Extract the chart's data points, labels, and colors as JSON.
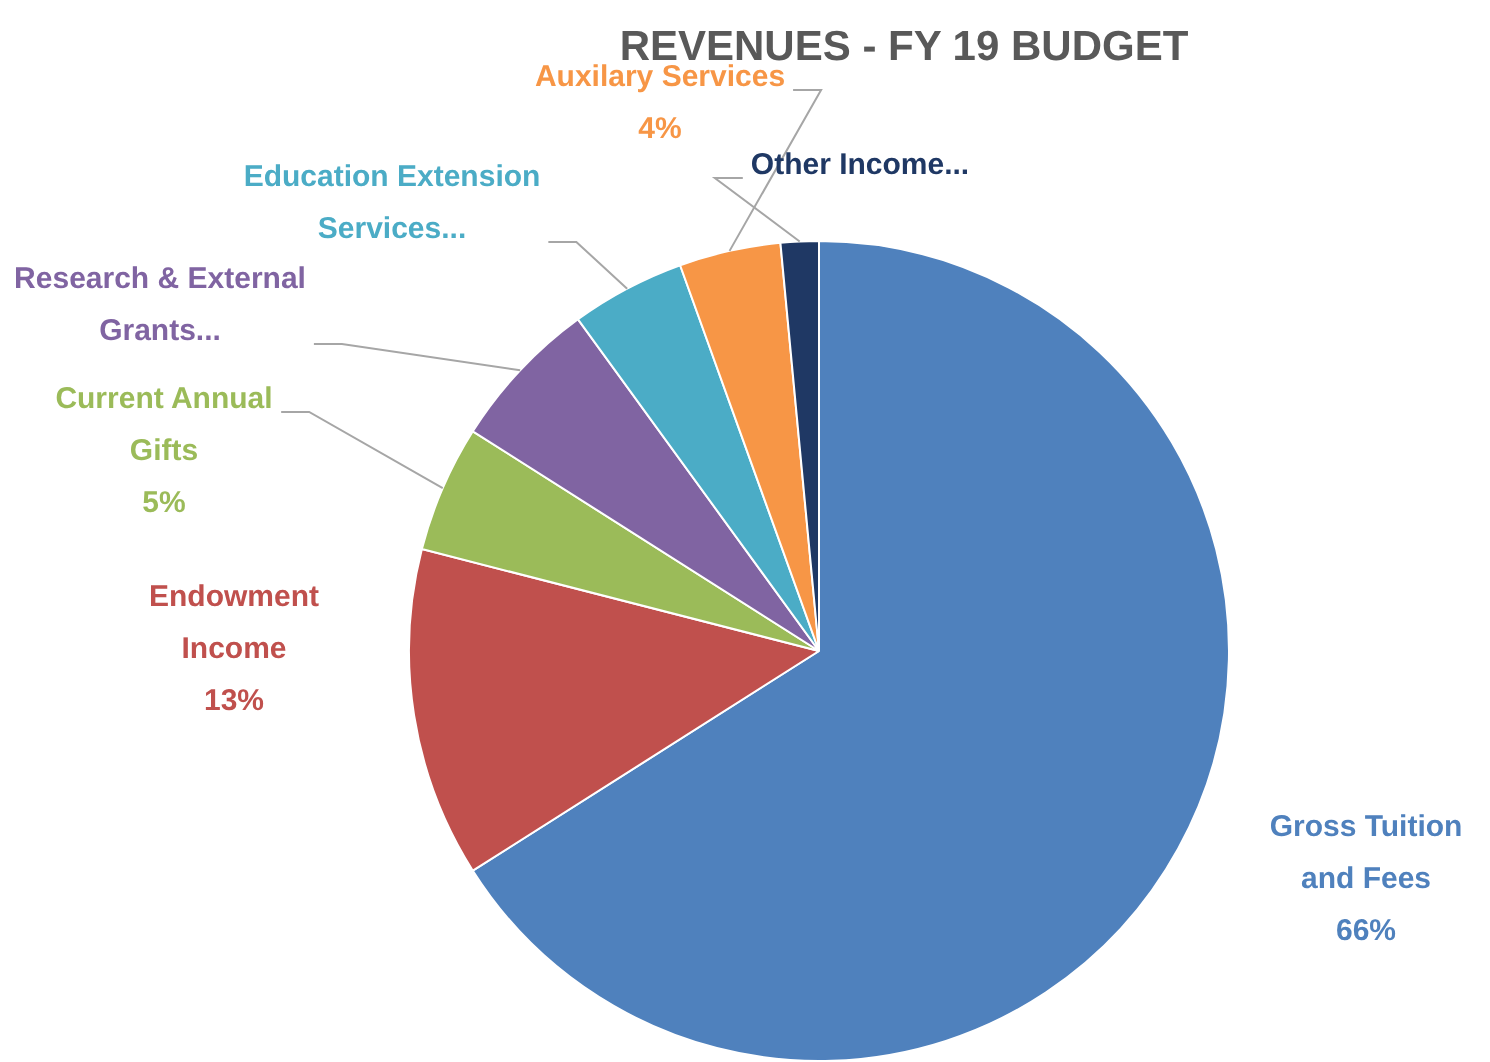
{
  "chart_data": {
    "type": "pie",
    "title": "REVENUES - FY 19 BUDGET",
    "categories": [
      "Gross Tuition and Fees",
      "Endowment Income",
      "Current Annual Gifts",
      "Research & External Grants...",
      "Education Extension Services...",
      "Auxilary Services",
      "Other Income..."
    ],
    "values": [
      66,
      13,
      5,
      6,
      4.5,
      4,
      1.5
    ],
    "value_labels": [
      "66%",
      "13%",
      "5%",
      null,
      null,
      "4%",
      null
    ],
    "colors": [
      "#4f81bd",
      "#c0504d",
      "#9bbb59",
      "#8064a2",
      "#4bacc6",
      "#f79646",
      "#1f3864"
    ]
  }
}
